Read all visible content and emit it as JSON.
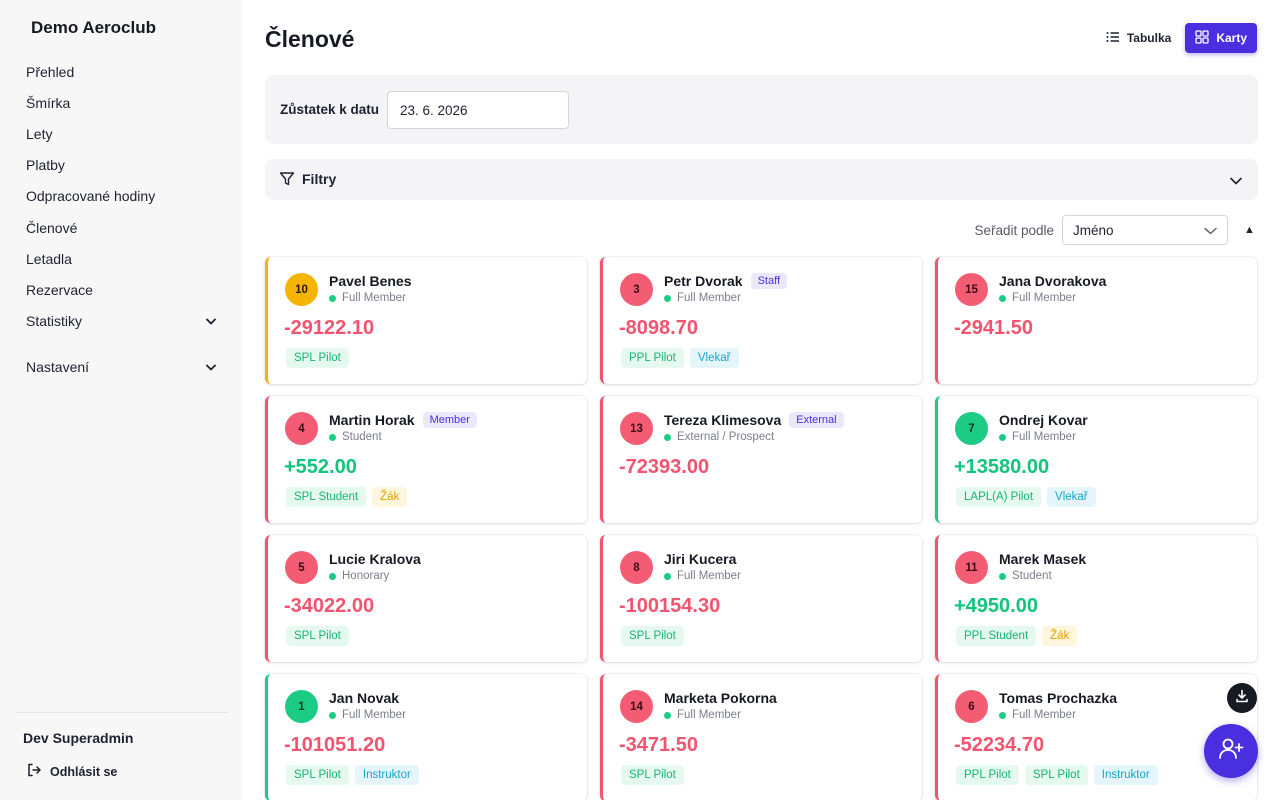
{
  "app": {
    "brand": "Demo Aeroclub"
  },
  "sidebar": {
    "items": [
      {
        "label": "Přehled"
      },
      {
        "label": "Šmírka"
      },
      {
        "label": "Lety"
      },
      {
        "label": "Platby"
      },
      {
        "label": "Odpracované hodiny"
      },
      {
        "label": "Členové"
      },
      {
        "label": "Letadla"
      },
      {
        "label": "Rezervace"
      },
      {
        "label": "Statistiky",
        "expandable": true
      },
      {
        "label": "Nastavení",
        "expandable": true
      }
    ],
    "user_name": "Dev Superadmin",
    "logout_label": "Odhlásit se"
  },
  "page": {
    "title": "Členové",
    "view_toggle": {
      "table_label": "Tabulka",
      "cards_label": "Karty",
      "active": "Karty"
    },
    "balance_date": {
      "label": "Zůstatek k datu",
      "value": "23. 6. 2026"
    },
    "filters": {
      "label": "Filtry"
    },
    "sort": {
      "label": "Seřadit podle",
      "value": "Jméno",
      "direction": "▲"
    }
  },
  "colors": {
    "accent": "#4a2fe0",
    "negative": "#f2546f",
    "positive": "#12c47c",
    "warning": "#f4b400"
  },
  "members": [
    {
      "number": "10",
      "name": "Pavel Benes",
      "badge": "",
      "status": "Full Member",
      "balance": "-29122.10",
      "accent": "yellow",
      "tags": [
        {
          "label": "SPL Pilot",
          "color": "green"
        }
      ]
    },
    {
      "number": "3",
      "name": "Petr Dvorak",
      "badge": "Staff",
      "status": "Full Member",
      "balance": "-8098.70",
      "accent": "red",
      "tags": [
        {
          "label": "PPL Pilot",
          "color": "green"
        },
        {
          "label": "Vlekař",
          "color": "cyan"
        }
      ]
    },
    {
      "number": "15",
      "name": "Jana Dvorakova",
      "badge": "",
      "status": "Full Member",
      "balance": "-2941.50",
      "accent": "red",
      "tags": []
    },
    {
      "number": "4",
      "name": "Martin Horak",
      "badge": "Member",
      "status": "Student",
      "balance": "+552.00",
      "accent": "red",
      "tags": [
        {
          "label": "SPL Student",
          "color": "green"
        },
        {
          "label": "Žák",
          "color": "yellow"
        }
      ]
    },
    {
      "number": "13",
      "name": "Tereza Klimesova",
      "badge": "External",
      "status": "External / Prospect",
      "balance": "-72393.00",
      "accent": "red",
      "tags": []
    },
    {
      "number": "7",
      "name": "Ondrej Kovar",
      "badge": "",
      "status": "Full Member",
      "balance": "+13580.00",
      "accent": "green",
      "tags": [
        {
          "label": "LAPL(A) Pilot",
          "color": "green"
        },
        {
          "label": "Vlekař",
          "color": "cyan"
        }
      ]
    },
    {
      "number": "5",
      "name": "Lucie Kralova",
      "badge": "",
      "status": "Honorary",
      "balance": "-34022.00",
      "accent": "red",
      "tags": [
        {
          "label": "SPL Pilot",
          "color": "green"
        }
      ]
    },
    {
      "number": "8",
      "name": "Jiri Kucera",
      "badge": "",
      "status": "Full Member",
      "balance": "-100154.30",
      "accent": "red",
      "tags": [
        {
          "label": "SPL Pilot",
          "color": "green"
        }
      ]
    },
    {
      "number": "11",
      "name": "Marek Masek",
      "badge": "",
      "status": "Student",
      "balance": "+4950.00",
      "accent": "red",
      "tags": [
        {
          "label": "PPL Student",
          "color": "green"
        },
        {
          "label": "Žák",
          "color": "yellow"
        }
      ]
    },
    {
      "number": "1",
      "name": "Jan Novak",
      "badge": "",
      "status": "Full Member",
      "balance": "-101051.20",
      "accent": "green",
      "tags": [
        {
          "label": "SPL Pilot",
          "color": "green"
        },
        {
          "label": "Instruktor",
          "color": "cyan"
        }
      ]
    },
    {
      "number": "14",
      "name": "Marketa Pokorna",
      "badge": "",
      "status": "Full Member",
      "balance": "-3471.50",
      "accent": "red",
      "tags": [
        {
          "label": "SPL Pilot",
          "color": "green"
        }
      ]
    },
    {
      "number": "6",
      "name": "Tomas Prochazka",
      "badge": "",
      "status": "Full Member",
      "balance": "-52234.70",
      "accent": "red",
      "tags": [
        {
          "label": "PPL Pilot",
          "color": "green"
        },
        {
          "label": "SPL Pilot",
          "color": "green"
        },
        {
          "label": "Instruktor",
          "color": "cyan"
        }
      ]
    }
  ]
}
